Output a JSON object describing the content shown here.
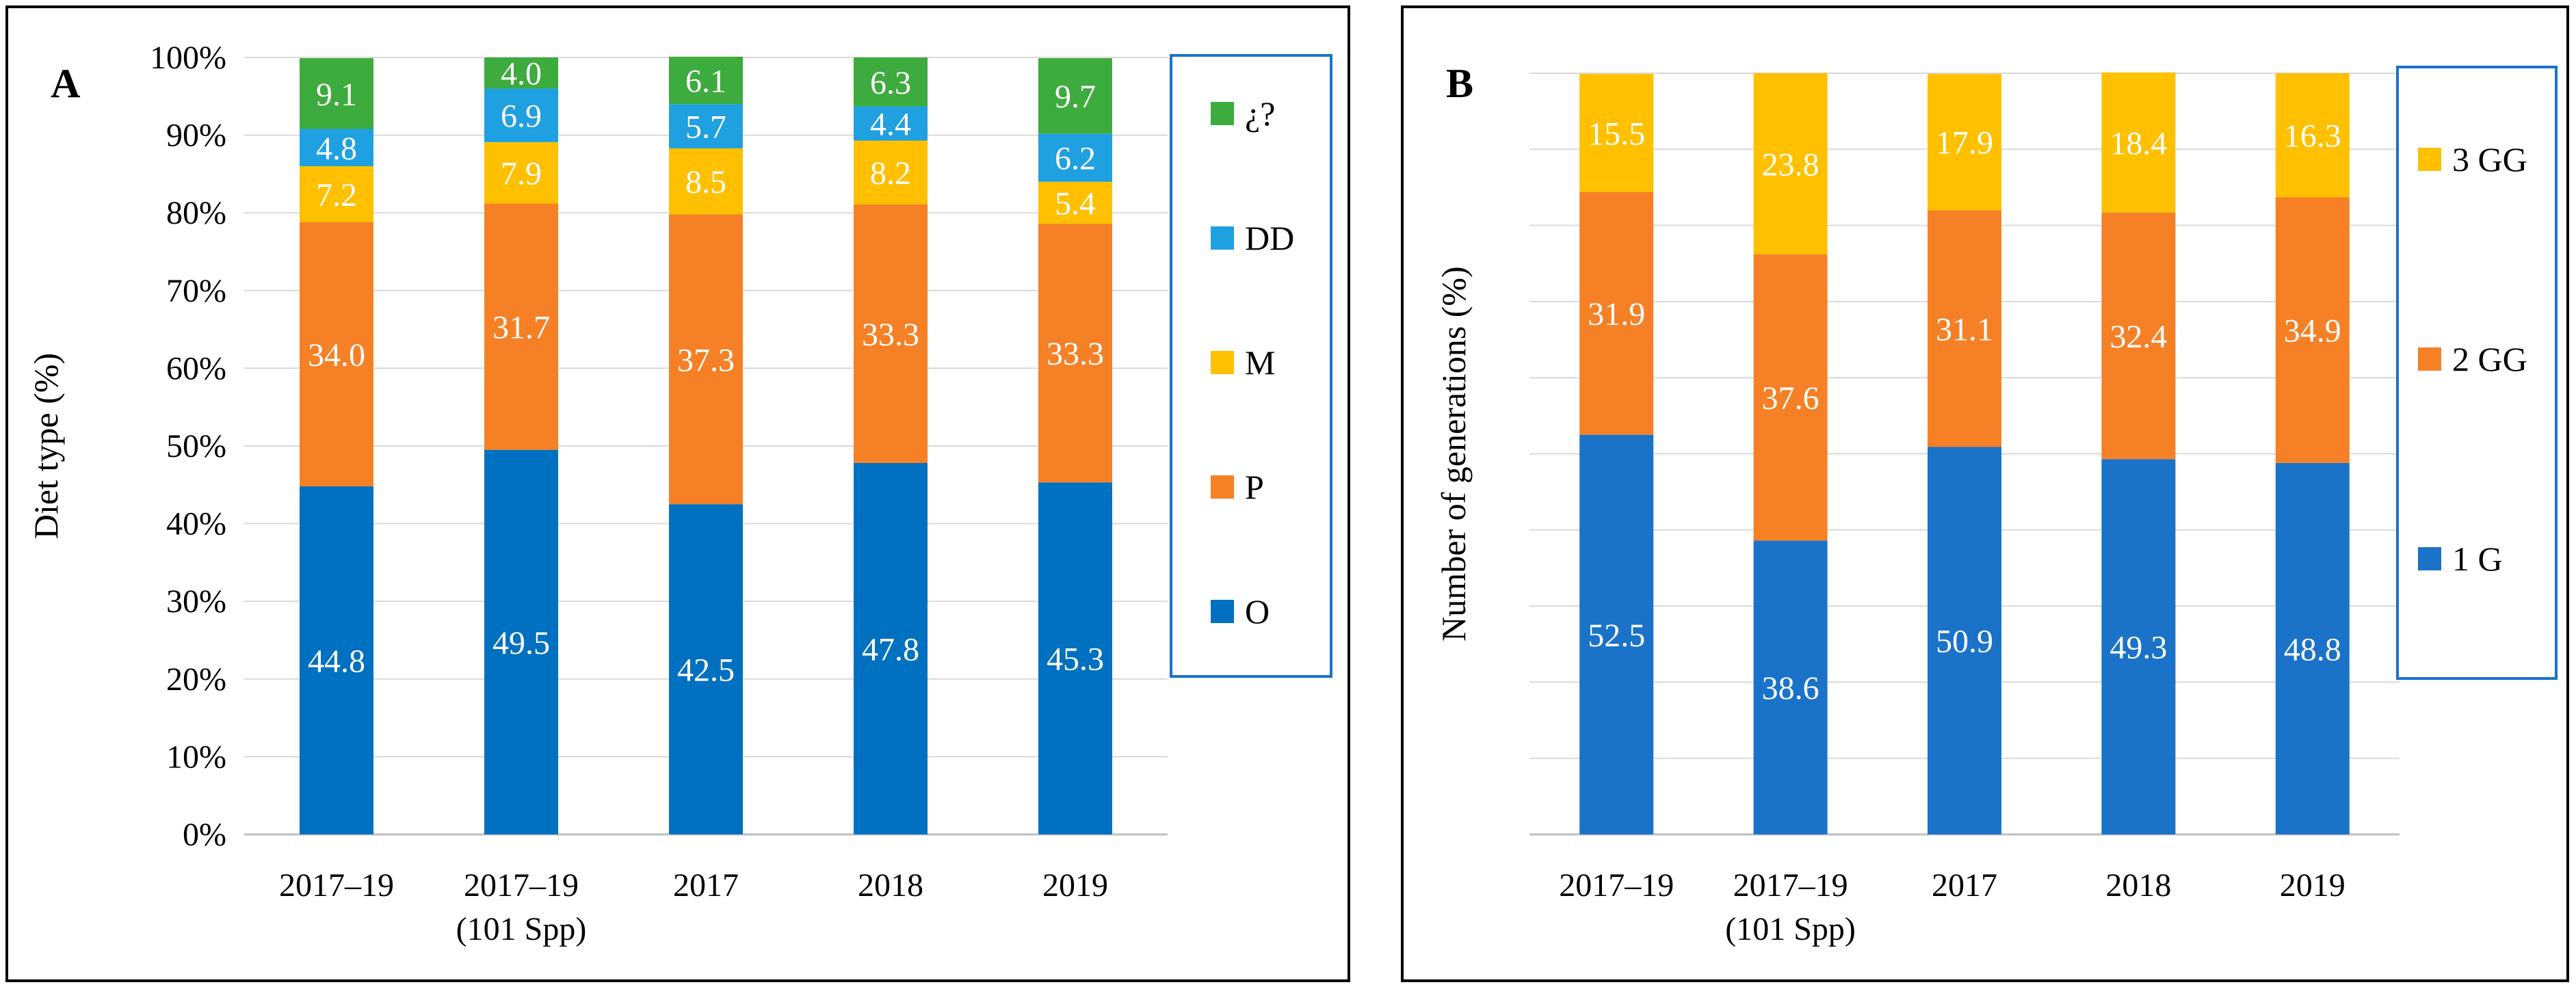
{
  "chart_data": [
    {
      "type": "bar",
      "stacked": true,
      "panel_label": "A",
      "title": "",
      "xlabel": "",
      "ylabel": "Diet type (%)",
      "ylim": [
        0,
        100
      ],
      "y_ticks": [
        "0%",
        "10%",
        "20%",
        "30%",
        "40%",
        "50%",
        "60%",
        "70%",
        "80%",
        "90%",
        "100%"
      ],
      "grid": true,
      "categories": [
        [
          "2017–19"
        ],
        [
          "2017–19",
          "(101 Spp)"
        ],
        [
          "2017"
        ],
        [
          "2018"
        ],
        [
          "2019"
        ]
      ],
      "legend_position": "right",
      "legend_order": [
        "¿?",
        "DD",
        "M",
        "P",
        "O"
      ],
      "series": [
        {
          "name": "O",
          "color": "#0070c0",
          "values": [
            44.8,
            49.5,
            42.5,
            47.8,
            45.3
          ],
          "labels": [
            "44.8",
            "49.5",
            "42.5",
            "47.8",
            "45.3"
          ]
        },
        {
          "name": "P",
          "color": "#f58025",
          "values": [
            34.0,
            31.7,
            37.3,
            33.3,
            33.3
          ],
          "labels": [
            "34.0",
            "31.7",
            "37.3",
            "33.3",
            "33.3"
          ]
        },
        {
          "name": "M",
          "color": "#ffc000",
          "values": [
            7.2,
            7.9,
            8.5,
            8.2,
            5.4
          ],
          "labels": [
            "7.2",
            "7.9",
            "8.5",
            "8.2",
            "5.4"
          ]
        },
        {
          "name": "DD",
          "color": "#1fa0e0",
          "values": [
            4.8,
            6.9,
            5.7,
            4.4,
            6.2
          ],
          "labels": [
            "4.8",
            "6.9",
            "5.7",
            "4.4",
            "6.2"
          ]
        },
        {
          "name": "¿?",
          "color": "#3dab3d",
          "values": [
            9.1,
            4.0,
            6.1,
            6.3,
            9.7
          ],
          "labels": [
            "9.1",
            "4.0",
            "6.1",
            "6.3",
            "9.7"
          ]
        }
      ]
    },
    {
      "type": "bar",
      "stacked": true,
      "panel_label": "B",
      "title": "",
      "xlabel": "",
      "ylabel": "Number of generations (%)",
      "ylim": [
        0,
        100
      ],
      "y_ticks": [],
      "grid": true,
      "categories": [
        [
          "2017–19"
        ],
        [
          "2017–19",
          "(101 Spp)"
        ],
        [
          "2017"
        ],
        [
          "2018"
        ],
        [
          "2019"
        ]
      ],
      "legend_position": "right",
      "legend_order": [
        "3 GG",
        "2 GG",
        "1 G"
      ],
      "series": [
        {
          "name": "1 G",
          "color": "#1a72c9",
          "values": [
            52.5,
            38.6,
            50.9,
            49.3,
            48.8
          ],
          "labels": [
            "52.5",
            "38.6",
            "50.9",
            "49.3",
            "48.8"
          ]
        },
        {
          "name": "2 GG",
          "color": "#f58025",
          "values": [
            31.9,
            37.6,
            31.1,
            32.4,
            34.9
          ],
          "labels": [
            "31.9",
            "37.6",
            "31.1",
            "32.4",
            "34.9"
          ]
        },
        {
          "name": "3 GG",
          "color": "#ffc000",
          "values": [
            15.5,
            23.8,
            17.9,
            18.4,
            16.3
          ],
          "labels": [
            "15.5",
            "23.8",
            "17.9",
            "18.4",
            "16.3"
          ]
        }
      ]
    }
  ]
}
